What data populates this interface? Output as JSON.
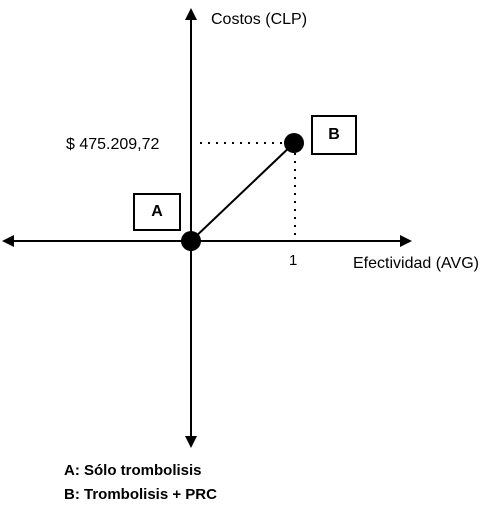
{
  "diagram": {
    "y_axis_label": "Costos (CLP)",
    "x_axis_label": "Efectividad (AVG)",
    "cost_value_label": "$ 475.209,72",
    "effectiveness_tick_label": "1"
  },
  "points": {
    "a": {
      "label": "A",
      "effectiveness": 0,
      "cost": 0
    },
    "b": {
      "label": "B",
      "effectiveness": 1,
      "cost": 475209.72
    }
  },
  "legend": {
    "items": [
      "A: Sólo trombolisis",
      "B: Trombolisis + PRC"
    ]
  }
}
